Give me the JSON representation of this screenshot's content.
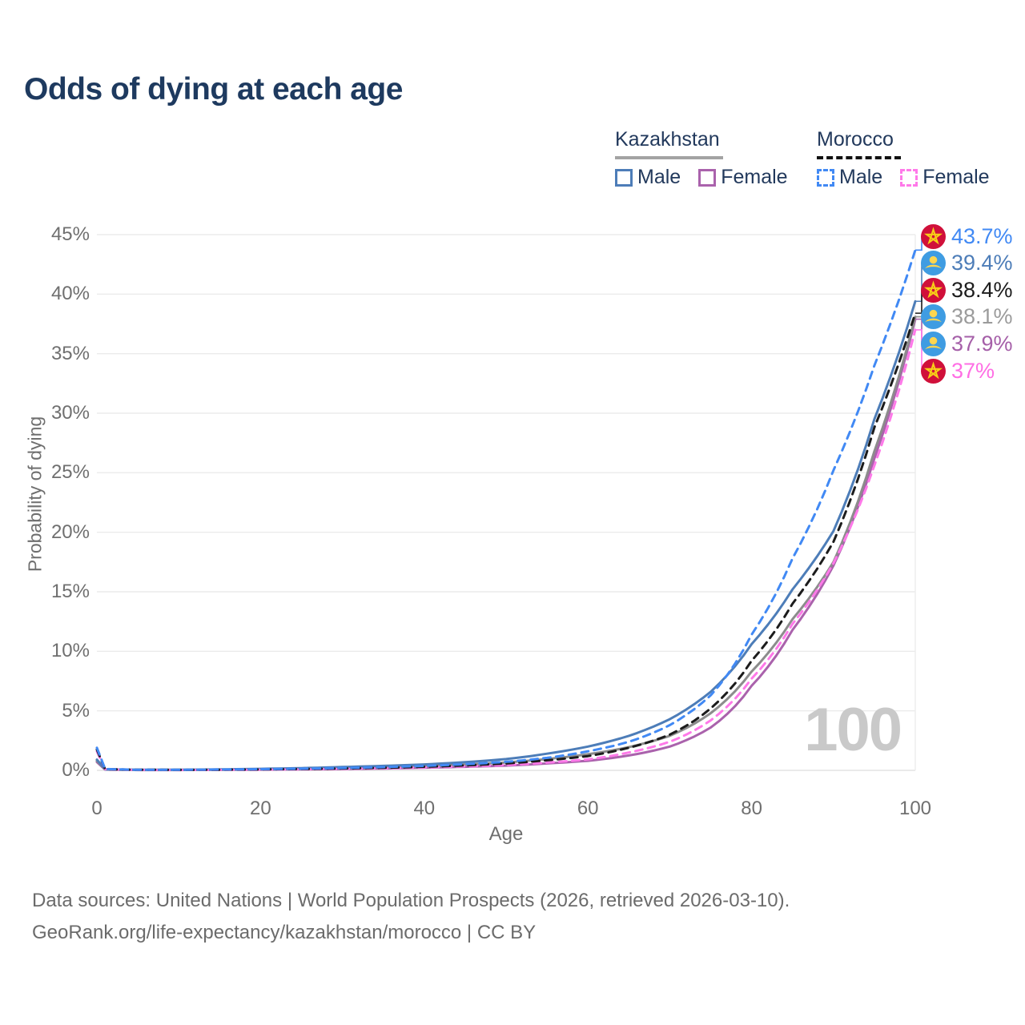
{
  "watermark": "100",
  "footer": {
    "line1": "Data sources: United Nations | World Population Prospects (2026, retrieved 2026-03-10).",
    "line2": "GeoRank.org/life-expectancy/kazakhstan/morocco | CC BY"
  },
  "legend": {
    "groups": [
      {
        "title": "Kazakhstan",
        "line_style": "solid",
        "underline_color": "#a3a3a3",
        "items": [
          {
            "label": "Male",
            "color": "#4d7db8",
            "style": "solid"
          },
          {
            "label": "Female",
            "color": "#aa62ac",
            "style": "solid"
          }
        ]
      },
      {
        "title": "Morocco",
        "line_style": "dashed",
        "underline_color": "#111111",
        "items": [
          {
            "label": "Male",
            "color": "#4189f4",
            "style": "dashed"
          },
          {
            "label": "Female",
            "color": "#ff79e9",
            "style": "dashed"
          }
        ]
      }
    ]
  },
  "chart_data": {
    "type": "line",
    "title": "Odds of dying at each age",
    "xlabel": "Age",
    "ylabel": "Probability of dying",
    "x_ticks": [
      "0",
      "20",
      "40",
      "60",
      "80",
      "100"
    ],
    "y_ticks": [
      "0%",
      "5%",
      "10%",
      "15%",
      "20%",
      "25%",
      "30%",
      "35%",
      "40%",
      "45%"
    ],
    "xlim": [
      0,
      100
    ],
    "ylim_percent": [
      0,
      45
    ],
    "grid": "horizontal",
    "legend_position": "top-right",
    "ages": [
      0,
      1,
      5,
      10,
      20,
      30,
      40,
      50,
      55,
      60,
      65,
      70,
      75,
      80,
      85,
      90,
      95,
      100
    ],
    "series": [
      {
        "name": "Kazakhstan Female",
        "country": "Kazakhstan",
        "sex": "Female",
        "flag": "kazakhstan",
        "color": "#aa62ac",
        "dash": "solid",
        "end_label": "37.9%",
        "label_color": "#a55fa8",
        "label_row": 4,
        "values": [
          0.7,
          0.07,
          0.03,
          0.03,
          0.06,
          0.11,
          0.22,
          0.4,
          0.58,
          0.8,
          1.25,
          2.0,
          3.6,
          7.1,
          11.8,
          17.2,
          26.2,
          37.9
        ]
      },
      {
        "name": "Kazakhstan Both sexes",
        "country": "Kazakhstan",
        "sex": "Both",
        "flag": "kazakhstan",
        "color": "#8c8c8c",
        "dash": "solid",
        "end_label": "38.1%",
        "label_color": "#9b9b9b",
        "label_row": 3,
        "values": [
          0.8,
          0.08,
          0.04,
          0.04,
          0.1,
          0.2,
          0.36,
          0.66,
          0.95,
          1.35,
          1.95,
          2.9,
          4.8,
          8.3,
          12.7,
          17.5,
          26.8,
          38.1
        ]
      },
      {
        "name": "Kazakhstan Male",
        "country": "Kazakhstan",
        "sex": "Male",
        "flag": "kazakhstan",
        "color": "#4d7db8",
        "dash": "solid",
        "end_label": "39.4%",
        "label_color": "#4d7db8",
        "label_row": 1,
        "values": [
          0.9,
          0.09,
          0.05,
          0.05,
          0.13,
          0.28,
          0.5,
          0.95,
          1.4,
          2.0,
          2.9,
          4.3,
          6.6,
          10.6,
          15.2,
          20.1,
          29.5,
          39.4
        ]
      },
      {
        "name": "Morocco Female",
        "country": "Morocco",
        "sex": "Female",
        "flag": "morocco",
        "color": "#ff79e9",
        "dash": "dashed",
        "end_label": "37%",
        "label_color": "#ff6ee4",
        "label_row": 5,
        "values": [
          1.6,
          0.1,
          0.04,
          0.03,
          0.06,
          0.13,
          0.25,
          0.45,
          0.65,
          0.92,
          1.5,
          2.4,
          4.2,
          7.7,
          12.3,
          17.4,
          25.6,
          37.0
        ]
      },
      {
        "name": "Morocco Both sexes",
        "country": "Morocco",
        "sex": "Both",
        "flag": "morocco",
        "color": "#1c1c1c",
        "dash": "dashed",
        "end_label": "38.4%",
        "label_color": "#1c1c1c",
        "label_row": 2,
        "values": [
          1.75,
          0.11,
          0.05,
          0.04,
          0.08,
          0.16,
          0.3,
          0.58,
          0.85,
          1.2,
          1.9,
          3.0,
          5.2,
          9.2,
          14.0,
          19.2,
          28.8,
          38.4
        ]
      },
      {
        "name": "Morocco Male",
        "country": "Morocco",
        "sex": "Male",
        "flag": "morocco",
        "color": "#4189f4",
        "dash": "dashed",
        "end_label": "43.7%",
        "label_color": "#4189f4",
        "label_row": 0,
        "values": [
          1.9,
          0.12,
          0.05,
          0.05,
          0.1,
          0.2,
          0.38,
          0.72,
          1.05,
          1.6,
          2.4,
          3.8,
          6.3,
          11.4,
          17.8,
          25.2,
          34.0,
          43.7
        ]
      }
    ]
  }
}
